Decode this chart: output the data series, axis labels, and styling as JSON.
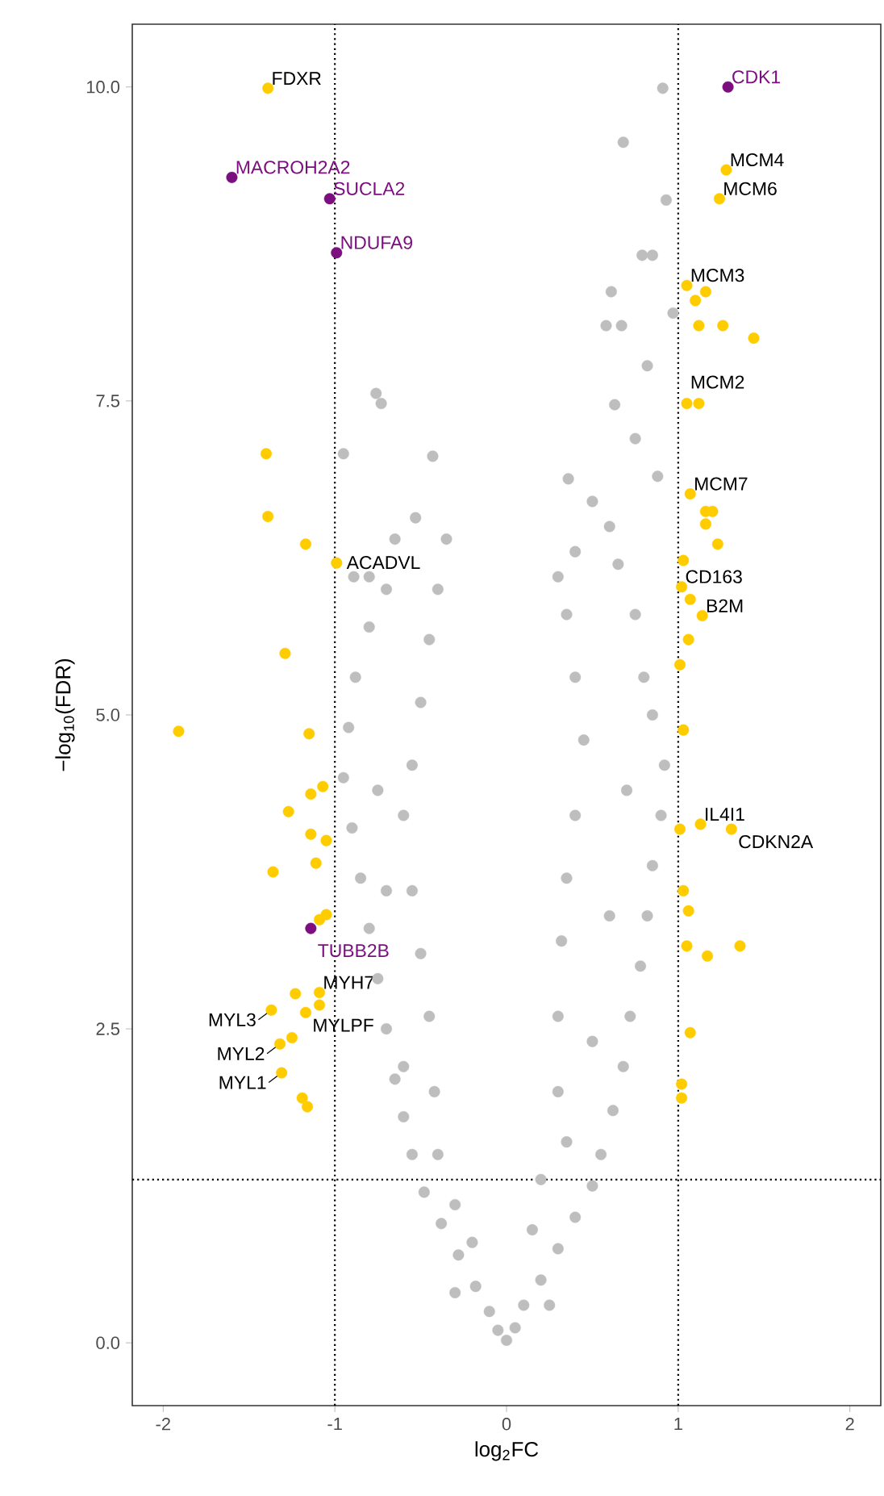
{
  "chart_data": {
    "type": "scatter",
    "xlabel": "log$_{2}$FC",
    "ylabel": "−log$_{10}$(FDR)",
    "xlim": [
      -2.18,
      2.18
    ],
    "ylim": [
      -0.5,
      10.5
    ],
    "xticks": [
      -2,
      -1,
      0,
      1,
      2
    ],
    "yticks": [
      {
        "value": 0,
        "label": "0.0"
      },
      {
        "value": 2.5,
        "label": "2.5"
      },
      {
        "value": 5,
        "label": "5.0"
      },
      {
        "value": 7.5,
        "label": "7.5"
      },
      {
        "value": 10,
        "label": "10.0"
      }
    ],
    "grid": false,
    "marker": "circle",
    "series": [
      {
        "color": "#bebebe",
        "x": [
          0,
          -0.05,
          0.05,
          -0.1,
          0.1,
          -0.18,
          0.2,
          -0.28,
          0.3,
          -0.38,
          0.4,
          -0.48,
          0.5,
          -0.55,
          0.55,
          -0.6,
          0.62,
          -0.65,
          0.68,
          -0.7,
          0.72,
          -0.75,
          0.78,
          -0.8,
          0.82,
          -0.85,
          0.85,
          -0.9,
          0.9,
          -0.95,
          0.92,
          -0.92,
          0.85,
          -0.88,
          0.8,
          -0.8,
          0.75,
          -0.7,
          0.65,
          -0.65,
          0.6,
          0.5,
          -0.3,
          0.25,
          -0.4,
          0.35,
          -0.42,
          0.3,
          -0.45,
          0.3,
          -0.5,
          0.32,
          -0.55,
          0.35,
          -0.6,
          0.4,
          -0.55,
          0.45,
          -0.5,
          0.4,
          -0.45,
          0.35,
          -0.4,
          0.3,
          -0.35,
          0.4,
          -0.6,
          0.5,
          -0.7,
          0.6,
          -0.75,
          0.7,
          -0.2,
          0.15,
          -0.3,
          0.2,
          -0.76,
          -0.73,
          -0.95,
          -0.43,
          -0.53,
          0.91,
          0.68,
          0.93,
          0.79,
          0.85,
          0.61,
          0.58,
          0.67,
          0.82,
          0.63,
          0.36,
          0.97,
          0.75,
          0.88,
          -0.89,
          -0.8
        ],
        "values": [
          0.02,
          0.1,
          0.12,
          0.25,
          0.3,
          0.45,
          0.5,
          0.7,
          0.75,
          0.95,
          1.0,
          1.2,
          1.25,
          1.5,
          1.5,
          1.8,
          1.85,
          2.1,
          2.2,
          2.5,
          2.6,
          2.9,
          3.0,
          3.3,
          3.4,
          3.7,
          3.8,
          4.1,
          4.2,
          4.5,
          4.6,
          4.9,
          5.0,
          5.3,
          5.3,
          5.7,
          5.8,
          6.0,
          6.2,
          6.4,
          6.5,
          6.7,
          0.4,
          0.3,
          1.5,
          1.6,
          2.0,
          2.0,
          2.6,
          2.6,
          3.1,
          3.2,
          3.6,
          3.7,
          4.2,
          4.2,
          4.6,
          4.8,
          5.1,
          5.3,
          5.6,
          5.8,
          6.0,
          6.1,
          6.4,
          6.3,
          2.2,
          2.4,
          3.6,
          3.4,
          4.4,
          4.4,
          0.8,
          0.9,
          1.1,
          1.3,
          7.56,
          7.48,
          7.08,
          7.06,
          6.57,
          9.99,
          9.56,
          9.1,
          8.66,
          8.66,
          8.37,
          8.1,
          8.1,
          7.78,
          7.47,
          6.88,
          8.2,
          7.2,
          6.9,
          6.1,
          6.1
        ]
      },
      {
        "color": "#ffcc00",
        "x": [
          -1.39,
          -1.4,
          -1.39,
          -1.17,
          -0.99,
          -1.29,
          -1.91,
          -1.15,
          -1.07,
          -1.14,
          -1.27,
          -1.14,
          -1.05,
          -1.36,
          -1.11,
          -1.09,
          -1.05,
          -1.23,
          -1.09,
          -1.37,
          -1.17,
          -1.09,
          -1.25,
          -1.32,
          -1.31,
          -1.19,
          -1.16,
          1.28,
          1.24,
          1.05,
          1.1,
          1.16,
          1.12,
          1.26,
          1.44,
          1.05,
          1.12,
          1.07,
          1.16,
          1.2,
          1.16,
          1.23,
          1.03,
          1.02,
          1.07,
          1.14,
          1.06,
          1.01,
          1.03,
          1.01,
          1.13,
          1.31,
          1.03,
          1.06,
          1.05,
          1.17,
          1.36,
          1.07,
          1.02,
          1.02
        ],
        "values": [
          9.99,
          7.08,
          6.58,
          6.36,
          6.21,
          5.49,
          4.87,
          4.85,
          4.43,
          4.37,
          4.23,
          4.05,
          4.0,
          3.75,
          3.82,
          3.37,
          3.41,
          2.78,
          2.79,
          2.65,
          2.63,
          2.69,
          2.43,
          2.38,
          2.15,
          1.95,
          1.88,
          9.34,
          9.11,
          8.42,
          8.3,
          8.37,
          8.1,
          8.1,
          8.0,
          7.48,
          7.48,
          6.76,
          6.62,
          6.62,
          6.52,
          6.36,
          6.23,
          6.02,
          5.92,
          5.79,
          5.6,
          5.4,
          4.88,
          4.09,
          4.13,
          4.09,
          3.6,
          3.44,
          3.16,
          3.08,
          3.16,
          2.47,
          2.06,
          1.95
        ]
      },
      {
        "color": "#7b0f7f",
        "x": [
          1.29,
          -1.6,
          -1.03,
          -0.99,
          -1.14
        ],
        "values": [
          10.0,
          9.28,
          9.11,
          8.68,
          3.3
        ]
      }
    ],
    "ref_lines": [
      {
        "axis": "x",
        "value": -1,
        "line_style": "dotted"
      },
      {
        "axis": "x",
        "value": 1,
        "line_style": "dotted"
      },
      {
        "axis": "y",
        "value": 1.3,
        "line_style": "dotted"
      }
    ],
    "annotations": [
      {
        "text": "CDK1",
        "x": 1.29,
        "y": 10.0
      },
      {
        "text": "FDXR",
        "x": -1.39,
        "y": 9.99
      },
      {
        "text": "MACROH2A2",
        "x": -1.6,
        "y": 9.28
      },
      {
        "text": "SUCLA2",
        "x": -1.03,
        "y": 9.11
      },
      {
        "text": "NDUFA9",
        "x": -0.99,
        "y": 8.68
      },
      {
        "text": "MCM4",
        "x": 1.28,
        "y": 9.34
      },
      {
        "text": "MCM6",
        "x": 1.24,
        "y": 9.11
      },
      {
        "text": "MCM3",
        "x": 1.05,
        "y": 8.42
      },
      {
        "text": "MCM2",
        "x": 1.05,
        "y": 7.48
      },
      {
        "text": "MCM7",
        "x": 1.07,
        "y": 6.76
      },
      {
        "text": "ACADVL",
        "x": -0.99,
        "y": 6.21
      },
      {
        "text": "CD163",
        "x": 1.02,
        "y": 6.02
      },
      {
        "text": "B2M",
        "x": 1.14,
        "y": 5.79
      },
      {
        "text": "IL4I1",
        "x": 1.13,
        "y": 4.13
      },
      {
        "text": "CDKN2A",
        "x": 1.31,
        "y": 4.09
      },
      {
        "text": "TUBB2B",
        "x": -1.14,
        "y": 3.3
      },
      {
        "text": "MYH7",
        "x": -1.09,
        "y": 2.79
      },
      {
        "text": "MYL3",
        "x": -1.37,
        "y": 2.65
      },
      {
        "text": "MYLPF",
        "x": -1.17,
        "y": 2.63
      },
      {
        "text": "MYL2",
        "x": -1.32,
        "y": 2.38
      },
      {
        "text": "MYL1",
        "x": -1.31,
        "y": 2.15
      }
    ]
  }
}
